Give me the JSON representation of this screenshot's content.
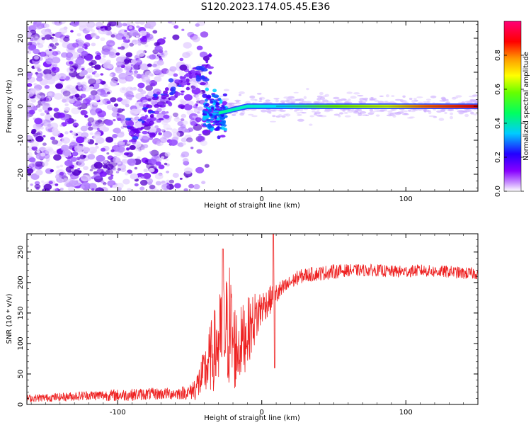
{
  "title": "S120.2023.174.05.45.E36",
  "chart_data": [
    {
      "type": "heatmap",
      "title": "S120.2023.174.05.45.E36",
      "xlabel": "Height of straight line (km)",
      "ylabel": "Frequency (Hz)",
      "xlim": [
        -163,
        150
      ],
      "ylim": [
        -25,
        25
      ],
      "x_ticks": [
        -100,
        0,
        100
      ],
      "y_ticks": [
        -20,
        -10,
        0,
        10,
        20
      ],
      "colorbar": {
        "label": "Normalized spectral amplitude",
        "range": [
          0,
          1
        ],
        "ticks": [
          0.0,
          0.2,
          0.4,
          0.6,
          0.8
        ],
        "colormap": [
          "#ffffff",
          "#8800ff",
          "#0000ff",
          "#00ffff",
          "#00ff00",
          "#ffff00",
          "#ff0000",
          "#ff0066"
        ]
      },
      "ridge": {
        "description_free": true,
        "x": [
          -30,
          -20,
          -10,
          0,
          20,
          40,
          60,
          80,
          100,
          120,
          150
        ],
        "frequency": [
          -2,
          -1,
          0,
          0,
          0,
          0,
          0,
          0,
          0,
          0,
          0
        ],
        "amplitude": [
          0.3,
          0.5,
          0.6,
          0.5,
          0.45,
          0.5,
          0.6,
          0.75,
          0.85,
          0.9,
          0.9
        ]
      }
    },
    {
      "type": "line",
      "xlabel": "Height of straight line (km)",
      "ylabel": "SNR (10 * v/v)",
      "xlim": [
        -163,
        150
      ],
      "ylim": [
        0,
        280
      ],
      "x_ticks": [
        -100,
        0,
        100
      ],
      "y_ticks": [
        0,
        50,
        100,
        150,
        200,
        250
      ],
      "series_color": "#ee2222",
      "envelope": {
        "x": [
          -163,
          -140,
          -120,
          -100,
          -80,
          -60,
          -50,
          -45,
          -40,
          -35,
          -30,
          -25,
          -22,
          -20,
          -17,
          -15,
          -12,
          -10,
          -7,
          -5,
          -2,
          0,
          3,
          5,
          8,
          10,
          12,
          15,
          20,
          25,
          30,
          40,
          50,
          60,
          70,
          80,
          90,
          100,
          110,
          120,
          130,
          140,
          150
        ],
        "mean": [
          10,
          12,
          15,
          15,
          17,
          18,
          20,
          30,
          50,
          80,
          100,
          120,
          130,
          100,
          90,
          100,
          110,
          120,
          130,
          140,
          150,
          160,
          165,
          170,
          175,
          180,
          185,
          190,
          200,
          208,
          212,
          215,
          218,
          220,
          220,
          220,
          218,
          218,
          220,
          218,
          218,
          215,
          215
        ],
        "spread": [
          6,
          7,
          8,
          10,
          10,
          10,
          12,
          25,
          40,
          60,
          80,
          90,
          110,
          80,
          70,
          60,
          60,
          55,
          50,
          45,
          40,
          30,
          25,
          25,
          20,
          20,
          18,
          15,
          12,
          12,
          12,
          12,
          12,
          10,
          10,
          10,
          10,
          10,
          10,
          10,
          10,
          10,
          10
        ]
      }
    }
  ]
}
